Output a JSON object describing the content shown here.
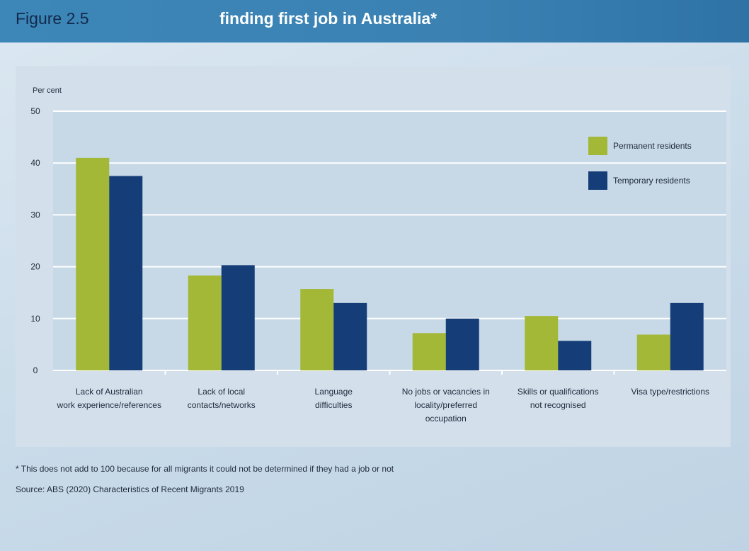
{
  "header": {
    "figure_label": "Figure 2.5",
    "title": "finding first job in Australia*"
  },
  "chart_data": {
    "type": "bar",
    "ylabel": "Per cent",
    "ylim": [
      0,
      50
    ],
    "yticks": [
      0,
      10,
      20,
      30,
      40,
      50
    ],
    "grid": true,
    "legend_position": "top-right",
    "categories": [
      [
        "Lack of Australian",
        "work experience/references"
      ],
      [
        "Lack of local",
        "contacts/networks"
      ],
      [
        "Language",
        "difficulties"
      ],
      [
        "No jobs or vacancies in",
        "locality/preferred",
        "occupation"
      ],
      [
        "Skills or qualifications",
        "not recognised"
      ],
      [
        "Visa type/restrictions"
      ]
    ],
    "series": [
      {
        "name": "Permanent residents",
        "color": "#a3b836",
        "values": [
          41,
          18.3,
          15.7,
          7.2,
          10.5,
          6.9
        ]
      },
      {
        "name": "Temporary residents",
        "color": "#153e78",
        "values": [
          37.5,
          20.3,
          13,
          10,
          5.7,
          13
        ]
      }
    ]
  },
  "notes": {
    "footnote": "* This does not add to 100 because for all migrants it could not be determined if they had a job or not",
    "source": "Source: ABS (2020) Characteristics of Recent Migrants 2019"
  }
}
